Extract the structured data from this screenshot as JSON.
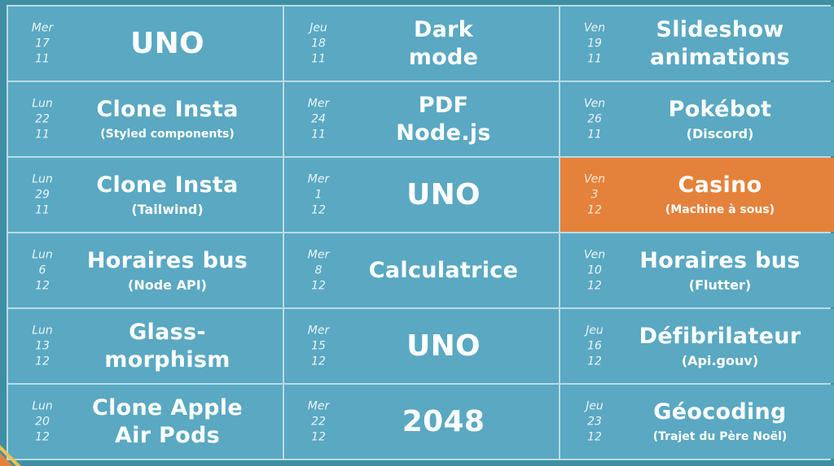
{
  "colors": {
    "background": "#3f8ea4",
    "cell": "#5aa8c2",
    "grid_line": "#b9dbe6",
    "highlight": "#e4823b"
  },
  "schedule": [
    {
      "day": "Mer",
      "num": "17",
      "month": "11",
      "title": "UNO",
      "sub": ""
    },
    {
      "day": "Jeu",
      "num": "18",
      "month": "11",
      "title": "Dark\nmode",
      "sub": ""
    },
    {
      "day": "Ven",
      "num": "19",
      "month": "11",
      "title": "Slideshow\nanimations",
      "sub": ""
    },
    {
      "day": "Lun",
      "num": "22",
      "month": "11",
      "title": "Clone Insta",
      "sub": "(Styled components)"
    },
    {
      "day": "Mer",
      "num": "24",
      "month": "11",
      "title": "PDF\nNode.js",
      "sub": ""
    },
    {
      "day": "Ven",
      "num": "26",
      "month": "11",
      "title": "Pokébot",
      "sub": "(Discord)"
    },
    {
      "day": "Lun",
      "num": "29",
      "month": "11",
      "title": "Clone Insta",
      "sub": "(Tailwind)"
    },
    {
      "day": "Mer",
      "num": "1",
      "month": "12",
      "title": "UNO",
      "sub": ""
    },
    {
      "day": "Ven",
      "num": "3",
      "month": "12",
      "title": "Casino",
      "sub": "(Machine à sous)",
      "highlight": true
    },
    {
      "day": "Lun",
      "num": "6",
      "month": "12",
      "title": "Horaires bus",
      "sub": "(Node API)"
    },
    {
      "day": "Mer",
      "num": "8",
      "month": "12",
      "title": "Calculatrice",
      "sub": ""
    },
    {
      "day": "Ven",
      "num": "10",
      "month": "12",
      "title": "Horaires bus",
      "sub": "(Flutter)"
    },
    {
      "day": "Lun",
      "num": "13",
      "month": "12",
      "title": "Glass-\nmorphism",
      "sub": ""
    },
    {
      "day": "Mer",
      "num": "15",
      "month": "12",
      "title": "UNO",
      "sub": ""
    },
    {
      "day": "Jeu",
      "num": "16",
      "month": "12",
      "title": "Défibrilateur",
      "sub": "(Api.gouv)"
    },
    {
      "day": "Lun",
      "num": "20",
      "month": "12",
      "title": "Clone Apple\nAir Pods",
      "sub": ""
    },
    {
      "day": "Mer",
      "num": "22",
      "month": "12",
      "title": "2048",
      "sub": ""
    },
    {
      "day": "Jeu",
      "num": "23",
      "month": "12",
      "title": "Géocoding",
      "sub": "(Trajet du Père Noël)"
    }
  ]
}
